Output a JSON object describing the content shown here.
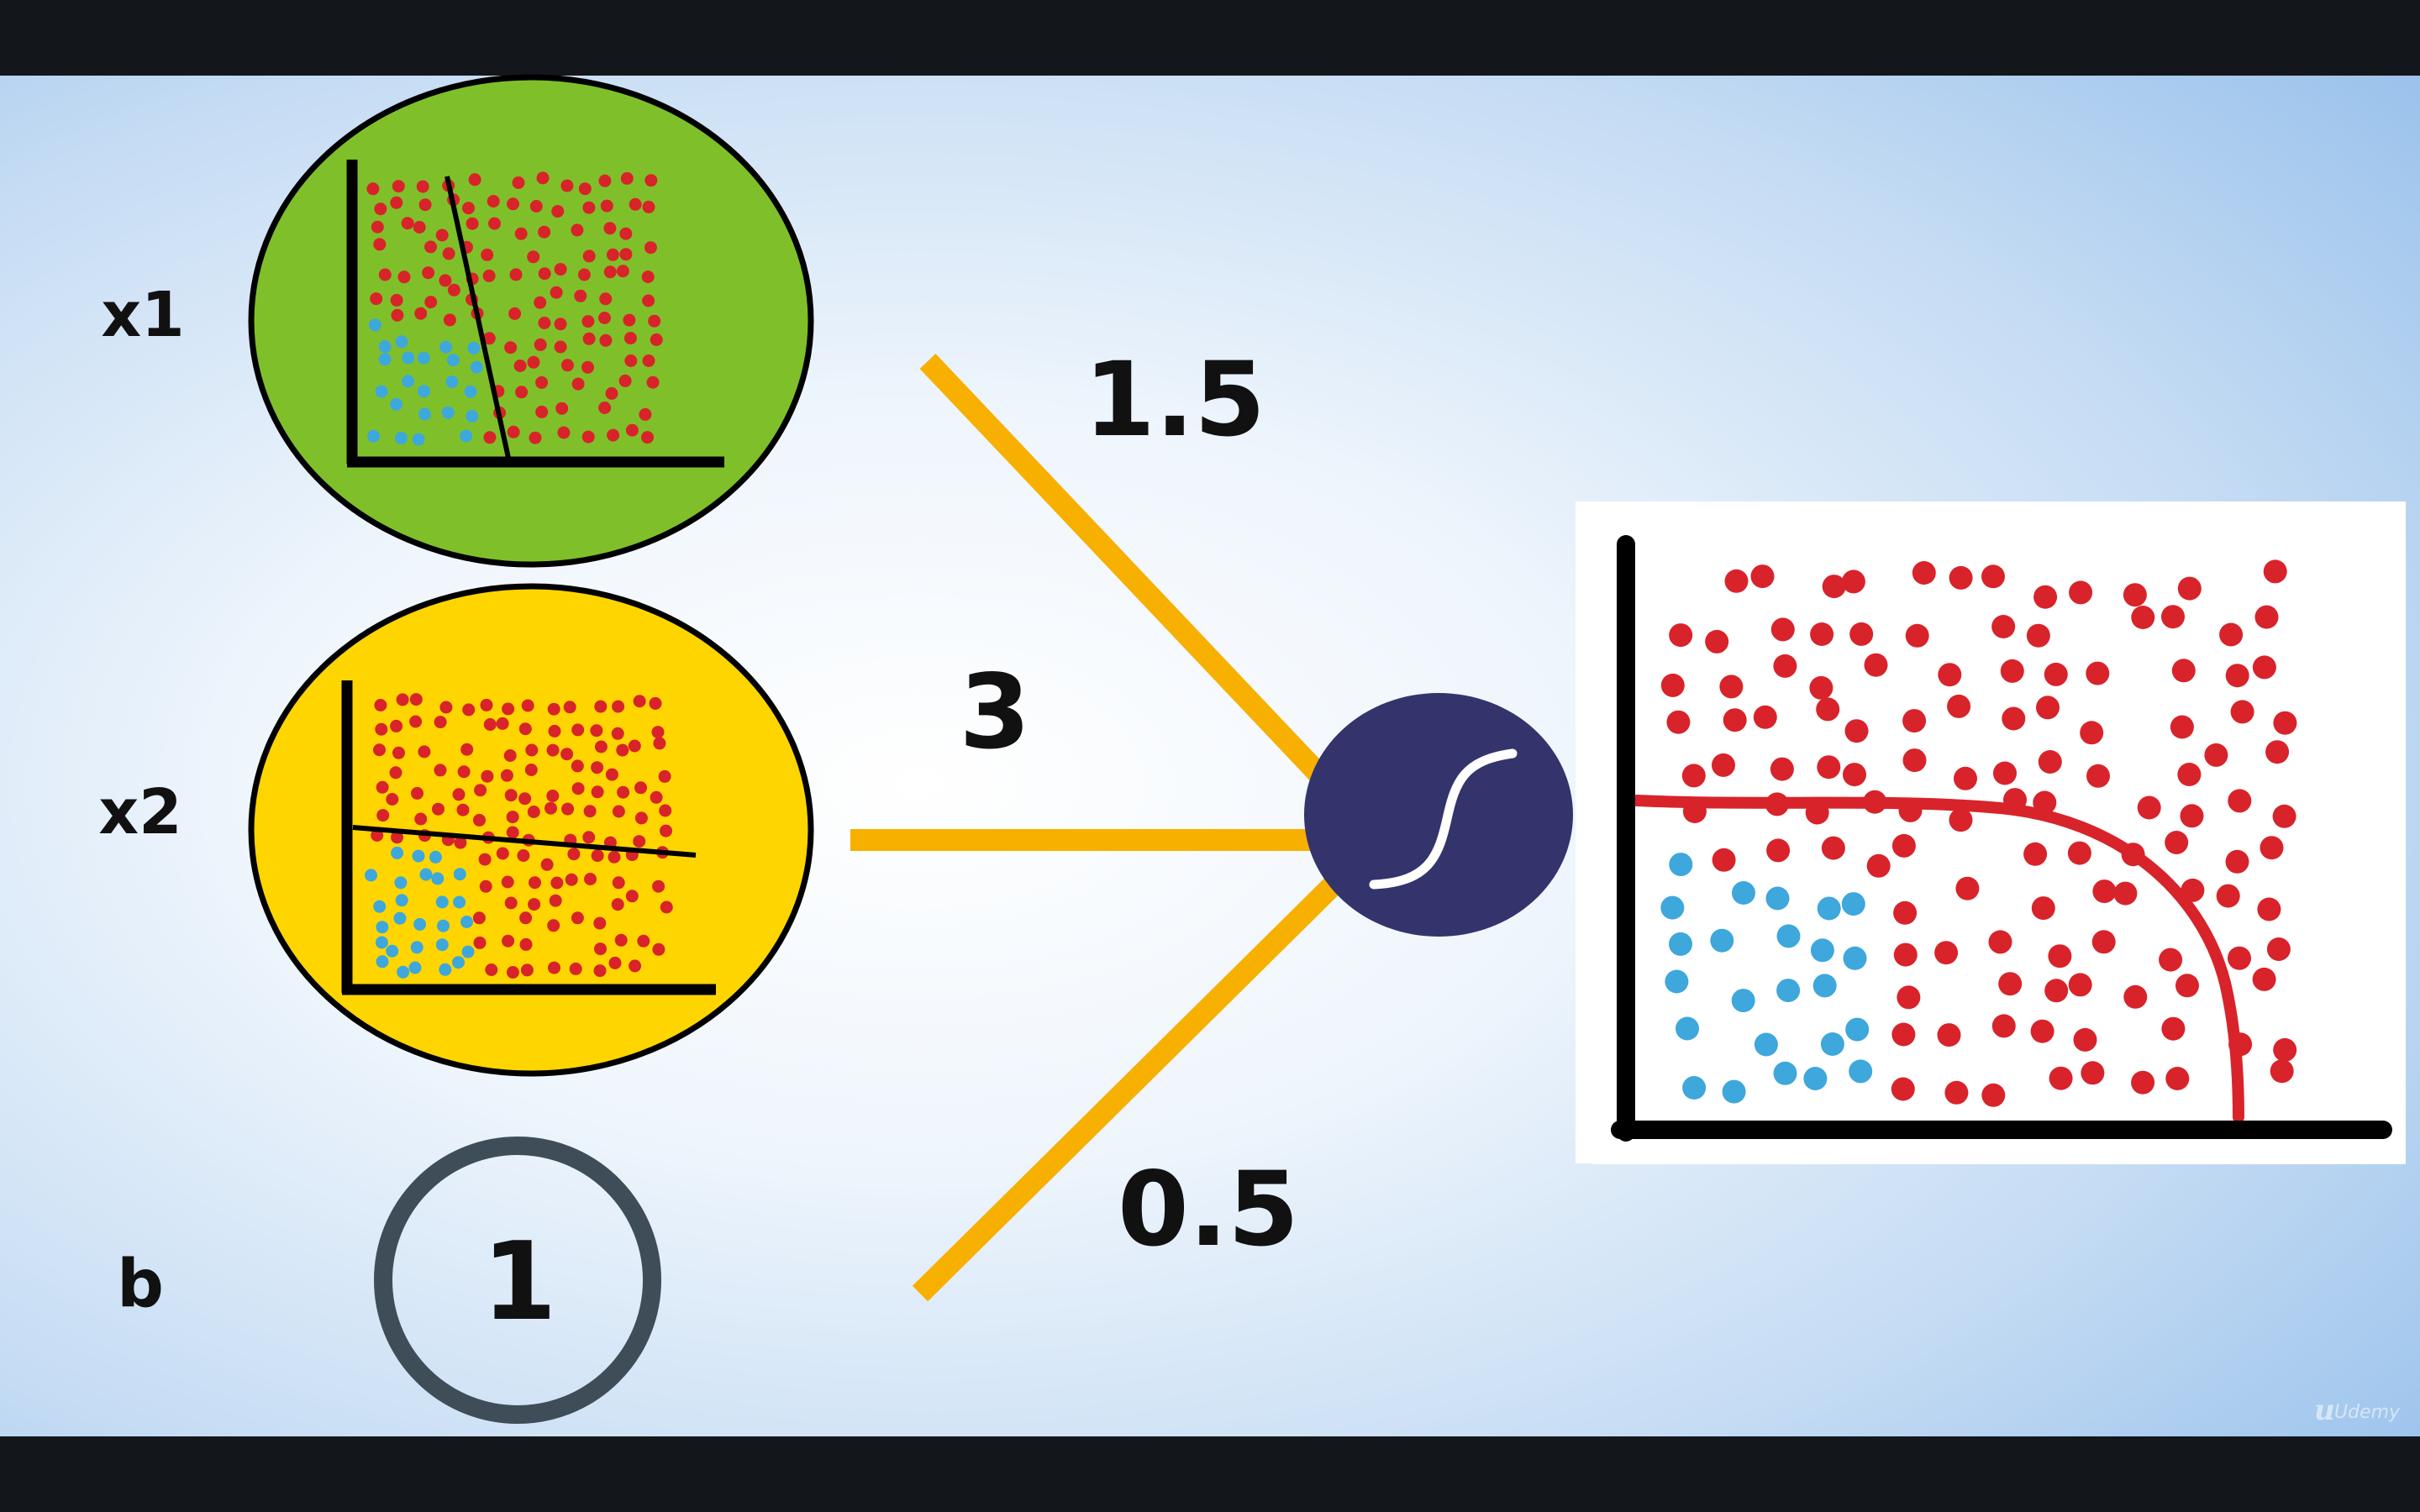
{
  "inputs": {
    "x1_label": "x1",
    "x2_label": "x2",
    "bias_label": "b",
    "bias_value": "1"
  },
  "weights": {
    "w1": "1.5",
    "w2": "3",
    "w3": "0.5"
  },
  "activation": {
    "icon": "sigmoid-icon"
  },
  "watermark": {
    "text": "Udemy"
  },
  "colors": {
    "background_light": "#ffffff",
    "background_blue": "#a4c8ee",
    "x1_fill": "#7fc02a",
    "x2_fill": "#ffd500",
    "bias_ring": "#3f4d58",
    "weight_lines": "#f8b000",
    "neuron_fill": "#33346c",
    "red_points": "#d8232a",
    "blue_points": "#3ea7dc",
    "boundary_curve": "#d8232a"
  }
}
